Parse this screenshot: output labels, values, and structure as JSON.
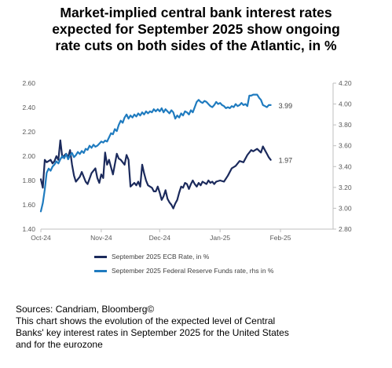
{
  "title_lines": [
    "Market-implied central bank interest rates",
    "expected for September 2025 show ongoing",
    "rate cuts on both sides of the Atlantic, in %"
  ],
  "colors": {
    "ecb": "#1b2a5c",
    "fed": "#1f7bbf",
    "axis": "#bfbfbf",
    "text": "#595959"
  },
  "legend": {
    "ecb": "September 2025 ECB  Rate, in %",
    "fed": "September 2025 Federal Reserve Funds rate, rhs in %"
  },
  "notes": {
    "sources": "Sources: Candriam, Bloomberg©",
    "description_lines": [
      "This chart shows the evolution of the expected level of Central",
      "Banks' key interest rates in September 2025 for the United States",
      "and for the eurozone"
    ]
  },
  "chart_data": {
    "type": "line",
    "x_axis": {
      "type": "date",
      "range": [
        "2024-10-01",
        "2025-02-28"
      ],
      "tick_labels": [
        "Oct-24",
        "Nov-24",
        "Dec-24",
        "Jan-25",
        "Feb-25"
      ],
      "tick_dates": [
        "2024-10-01",
        "2024-11-01",
        "2024-12-01",
        "2025-01-01",
        "2025-02-01"
      ]
    },
    "y_left": {
      "ylim": [
        1.4,
        2.6
      ],
      "ticks": [
        "1.40",
        "1.60",
        "1.80",
        "2.00",
        "2.20",
        "2.40",
        "2.60"
      ]
    },
    "y_right": {
      "ylim": [
        2.8,
        4.2
      ],
      "ticks": [
        "2.80",
        "3.00",
        "3.20",
        "3.40",
        "3.60",
        "3.80",
        "4.00",
        "4.20"
      ]
    },
    "series": [
      {
        "name": "September 2025 ECB  Rate, in %",
        "axis": "left",
        "end_label": "1.97",
        "points": [
          [
            "2024-10-01",
            1.81
          ],
          [
            "2024-10-02",
            1.74
          ],
          [
            "2024-10-03",
            1.97
          ],
          [
            "2024-10-04",
            1.95
          ],
          [
            "2024-10-06",
            1.97
          ],
          [
            "2024-10-07",
            1.94
          ],
          [
            "2024-10-08",
            1.96
          ],
          [
            "2024-10-09",
            2.0
          ],
          [
            "2024-10-10",
            1.97
          ],
          [
            "2024-10-11",
            2.13
          ],
          [
            "2024-10-12",
            1.99
          ],
          [
            "2024-10-14",
            2.02
          ],
          [
            "2024-10-15",
            1.99
          ],
          [
            "2024-10-16",
            2.05
          ],
          [
            "2024-10-17",
            1.93
          ],
          [
            "2024-10-18",
            1.84
          ],
          [
            "2024-10-19",
            1.79
          ],
          [
            "2024-10-21",
            1.83
          ],
          [
            "2024-10-22",
            1.87
          ],
          [
            "2024-10-24",
            1.79
          ],
          [
            "2024-10-25",
            1.77
          ],
          [
            "2024-10-27",
            1.86
          ],
          [
            "2024-10-29",
            1.9
          ],
          [
            "2024-10-30",
            1.82
          ],
          [
            "2024-10-31",
            1.78
          ],
          [
            "2024-11-01",
            1.85
          ],
          [
            "2024-11-02",
            1.82
          ],
          [
            "2024-11-03",
            2.03
          ],
          [
            "2024-11-04",
            1.93
          ],
          [
            "2024-11-05",
            1.97
          ],
          [
            "2024-11-07",
            1.85
          ],
          [
            "2024-11-09",
            2.02
          ],
          [
            "2024-11-10",
            1.98
          ],
          [
            "2024-11-11",
            1.97
          ],
          [
            "2024-11-13",
            1.93
          ],
          [
            "2024-11-14",
            2.01
          ],
          [
            "2024-11-15",
            1.97
          ],
          [
            "2024-11-16",
            1.75
          ],
          [
            "2024-11-18",
            1.78
          ],
          [
            "2024-11-19",
            1.76
          ],
          [
            "2024-11-20",
            1.79
          ],
          [
            "2024-11-21",
            1.75
          ],
          [
            "2024-11-22",
            1.93
          ],
          [
            "2024-11-23",
            1.86
          ],
          [
            "2024-11-24",
            1.8
          ],
          [
            "2024-11-25",
            1.76
          ],
          [
            "2024-11-27",
            1.74
          ],
          [
            "2024-11-28",
            1.71
          ],
          [
            "2024-11-29",
            1.71
          ],
          [
            "2024-11-30",
            1.75
          ],
          [
            "2024-12-01",
            1.7
          ],
          [
            "2024-12-02",
            1.64
          ],
          [
            "2024-12-03",
            1.67
          ],
          [
            "2024-12-04",
            1.72
          ],
          [
            "2024-12-05",
            1.65
          ],
          [
            "2024-12-06",
            1.62
          ],
          [
            "2024-12-07",
            1.6
          ],
          [
            "2024-12-08",
            1.57
          ],
          [
            "2024-12-09",
            1.61
          ],
          [
            "2024-12-10",
            1.64
          ],
          [
            "2024-12-11",
            1.7
          ],
          [
            "2024-12-12",
            1.75
          ],
          [
            "2024-12-13",
            1.74
          ],
          [
            "2024-12-14",
            1.78
          ],
          [
            "2024-12-15",
            1.77
          ],
          [
            "2024-12-16",
            1.73
          ],
          [
            "2024-12-17",
            1.77
          ],
          [
            "2024-12-18",
            1.8
          ],
          [
            "2024-12-19",
            1.77
          ],
          [
            "2024-12-20",
            1.75
          ],
          [
            "2024-12-21",
            1.78
          ],
          [
            "2024-12-22",
            1.76
          ],
          [
            "2024-12-23",
            1.79
          ],
          [
            "2024-12-25",
            1.77
          ],
          [
            "2024-12-26",
            1.8
          ],
          [
            "2024-12-27",
            1.78
          ],
          [
            "2024-12-28",
            1.79
          ],
          [
            "2024-12-29",
            1.77
          ],
          [
            "2024-12-30",
            1.79
          ],
          [
            "2025-01-01",
            1.8
          ],
          [
            "2025-01-03",
            1.79
          ],
          [
            "2025-01-05",
            1.84
          ],
          [
            "2025-01-07",
            1.9
          ],
          [
            "2025-01-09",
            1.92
          ],
          [
            "2025-01-11",
            1.96
          ],
          [
            "2025-01-13",
            1.95
          ],
          [
            "2025-01-15",
            2.01
          ],
          [
            "2025-01-17",
            2.05
          ],
          [
            "2025-01-18",
            2.04
          ],
          [
            "2025-01-20",
            2.06
          ],
          [
            "2025-01-22",
            2.03
          ],
          [
            "2025-01-23",
            2.08
          ],
          [
            "2025-01-24",
            2.05
          ],
          [
            "2025-01-25",
            2.02
          ],
          [
            "2025-01-26",
            1.99
          ],
          [
            "2025-01-27",
            1.97
          ]
        ]
      },
      {
        "name": "September 2025 Federal Reserve Funds rate, rhs in %",
        "axis": "right",
        "end_label": "3.99",
        "points": [
          [
            "2024-10-01",
            2.97
          ],
          [
            "2024-10-02",
            3.05
          ],
          [
            "2024-10-03",
            3.18
          ],
          [
            "2024-10-04",
            3.34
          ],
          [
            "2024-10-05",
            3.38
          ],
          [
            "2024-10-06",
            3.36
          ],
          [
            "2024-10-07",
            3.4
          ],
          [
            "2024-10-08",
            3.42
          ],
          [
            "2024-10-09",
            3.45
          ],
          [
            "2024-10-10",
            3.43
          ],
          [
            "2024-10-11",
            3.47
          ],
          [
            "2024-10-12",
            3.5
          ],
          [
            "2024-10-13",
            3.48
          ],
          [
            "2024-10-14",
            3.52
          ],
          [
            "2024-10-15",
            3.47
          ],
          [
            "2024-10-16",
            3.51
          ],
          [
            "2024-10-17",
            3.53
          ],
          [
            "2024-10-18",
            3.49
          ],
          [
            "2024-10-19",
            3.51
          ],
          [
            "2024-10-20",
            3.54
          ],
          [
            "2024-10-21",
            3.52
          ],
          [
            "2024-10-22",
            3.55
          ],
          [
            "2024-10-23",
            3.53
          ],
          [
            "2024-10-24",
            3.57
          ],
          [
            "2024-10-25",
            3.56
          ],
          [
            "2024-10-26",
            3.6
          ],
          [
            "2024-10-27",
            3.58
          ],
          [
            "2024-10-28",
            3.61
          ],
          [
            "2024-10-29",
            3.59
          ],
          [
            "2024-10-30",
            3.6
          ],
          [
            "2024-10-31",
            3.62
          ],
          [
            "2024-11-01",
            3.64
          ],
          [
            "2024-11-02",
            3.63
          ],
          [
            "2024-11-03",
            3.65
          ],
          [
            "2024-11-04",
            3.64
          ],
          [
            "2024-11-05",
            3.68
          ],
          [
            "2024-11-06",
            3.72
          ],
          [
            "2024-11-07",
            3.71
          ],
          [
            "2024-11-08",
            3.76
          ],
          [
            "2024-11-09",
            3.74
          ],
          [
            "2024-11-10",
            3.8
          ],
          [
            "2024-11-11",
            3.84
          ],
          [
            "2024-11-12",
            3.82
          ],
          [
            "2024-11-13",
            3.87
          ],
          [
            "2024-11-14",
            3.9
          ],
          [
            "2024-11-15",
            3.86
          ],
          [
            "2024-11-16",
            3.89
          ],
          [
            "2024-11-17",
            3.87
          ],
          [
            "2024-11-18",
            3.9
          ],
          [
            "2024-11-19",
            3.88
          ],
          [
            "2024-11-20",
            3.91
          ],
          [
            "2024-11-21",
            3.89
          ],
          [
            "2024-11-22",
            3.92
          ],
          [
            "2024-11-23",
            3.9
          ],
          [
            "2024-11-24",
            3.93
          ],
          [
            "2024-11-25",
            3.91
          ],
          [
            "2024-11-26",
            3.93
          ],
          [
            "2024-11-27",
            3.92
          ],
          [
            "2024-11-28",
            3.95
          ],
          [
            "2024-11-29",
            3.93
          ],
          [
            "2024-11-30",
            3.95
          ],
          [
            "2024-12-01",
            3.93
          ],
          [
            "2024-12-02",
            3.96
          ],
          [
            "2024-12-03",
            3.92
          ],
          [
            "2024-12-04",
            3.95
          ],
          [
            "2024-12-05",
            3.93
          ],
          [
            "2024-12-06",
            3.91
          ],
          [
            "2024-12-07",
            3.94
          ],
          [
            "2024-12-08",
            3.92
          ],
          [
            "2024-12-09",
            3.86
          ],
          [
            "2024-12-10",
            3.89
          ],
          [
            "2024-12-11",
            3.87
          ],
          [
            "2024-12-12",
            3.91
          ],
          [
            "2024-12-13",
            3.89
          ],
          [
            "2024-12-14",
            3.93
          ],
          [
            "2024-12-15",
            3.92
          ],
          [
            "2024-12-16",
            3.9
          ],
          [
            "2024-12-17",
            3.94
          ],
          [
            "2024-12-18",
            3.92
          ],
          [
            "2024-12-19",
            3.97
          ],
          [
            "2024-12-20",
            4.02
          ],
          [
            "2024-12-21",
            4.04
          ],
          [
            "2024-12-22",
            4.02
          ],
          [
            "2024-12-23",
            4.01
          ],
          [
            "2024-12-24",
            4.03
          ],
          [
            "2024-12-25",
            4.02
          ],
          [
            "2024-12-26",
            4.0
          ],
          [
            "2024-12-27",
            3.98
          ],
          [
            "2024-12-28",
            3.97
          ],
          [
            "2024-12-29",
            3.99
          ],
          [
            "2024-12-30",
            4.02
          ],
          [
            "2024-12-31",
            4.0
          ],
          [
            "2025-01-01",
            4.01
          ],
          [
            "2025-01-02",
            3.99
          ],
          [
            "2025-01-03",
            3.98
          ],
          [
            "2025-01-04",
            3.96
          ],
          [
            "2025-01-05",
            3.97
          ],
          [
            "2025-01-06",
            3.96
          ],
          [
            "2025-01-07",
            3.98
          ],
          [
            "2025-01-08",
            3.97
          ],
          [
            "2025-01-09",
            4.0
          ],
          [
            "2025-01-10",
            3.98
          ],
          [
            "2025-01-11",
            3.99
          ],
          [
            "2025-01-12",
            4.01
          ],
          [
            "2025-01-13",
            3.99
          ],
          [
            "2025-01-14",
            4.0
          ],
          [
            "2025-01-15",
            3.98
          ],
          [
            "2025-01-16",
            4.08
          ],
          [
            "2025-01-17",
            4.08
          ],
          [
            "2025-01-18",
            4.09
          ],
          [
            "2025-01-19",
            4.09
          ],
          [
            "2025-01-20",
            4.09
          ],
          [
            "2025-01-21",
            4.06
          ],
          [
            "2025-01-22",
            4.04
          ],
          [
            "2025-01-23",
            3.99
          ],
          [
            "2025-01-24",
            3.98
          ],
          [
            "2025-01-25",
            3.97
          ],
          [
            "2025-01-26",
            3.99
          ],
          [
            "2025-01-27",
            3.99
          ]
        ]
      }
    ]
  }
}
